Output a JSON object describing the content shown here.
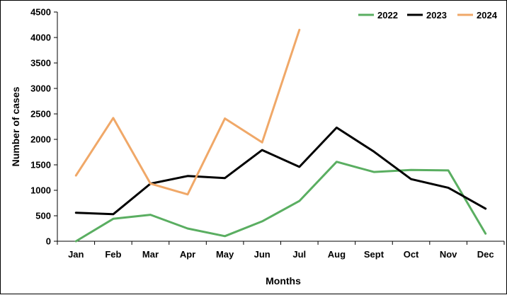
{
  "chart_data": {
    "type": "line",
    "title": "",
    "xlabel": "Months",
    "ylabel": "Number of cases",
    "categories": [
      "Jan",
      "Feb",
      "Mar",
      "Apr",
      "May",
      "Jun",
      "Jul",
      "Aug",
      "Sept",
      "Oct",
      "Nov",
      "Dec"
    ],
    "ylim": [
      0,
      4500
    ],
    "yticks": [
      0,
      500,
      1000,
      1500,
      2000,
      2500,
      3000,
      3500,
      4000,
      4500
    ],
    "grid": false,
    "legend_position": "top-right",
    "series": [
      {
        "name": "2022",
        "color": "#5aae61",
        "values": [
          0,
          440,
          520,
          250,
          100,
          390,
          790,
          1560,
          1360,
          1400,
          1390,
          150
        ]
      },
      {
        "name": "2023",
        "color": "#000000",
        "values": [
          560,
          530,
          1130,
          1280,
          1240,
          1790,
          1460,
          2230,
          1760,
          1220,
          1050,
          640
        ]
      },
      {
        "name": "2024",
        "color": "#f0a868",
        "values": [
          1290,
          2420,
          1130,
          920,
          2410,
          1940,
          4150,
          null,
          null,
          null,
          null,
          null
        ]
      }
    ]
  }
}
